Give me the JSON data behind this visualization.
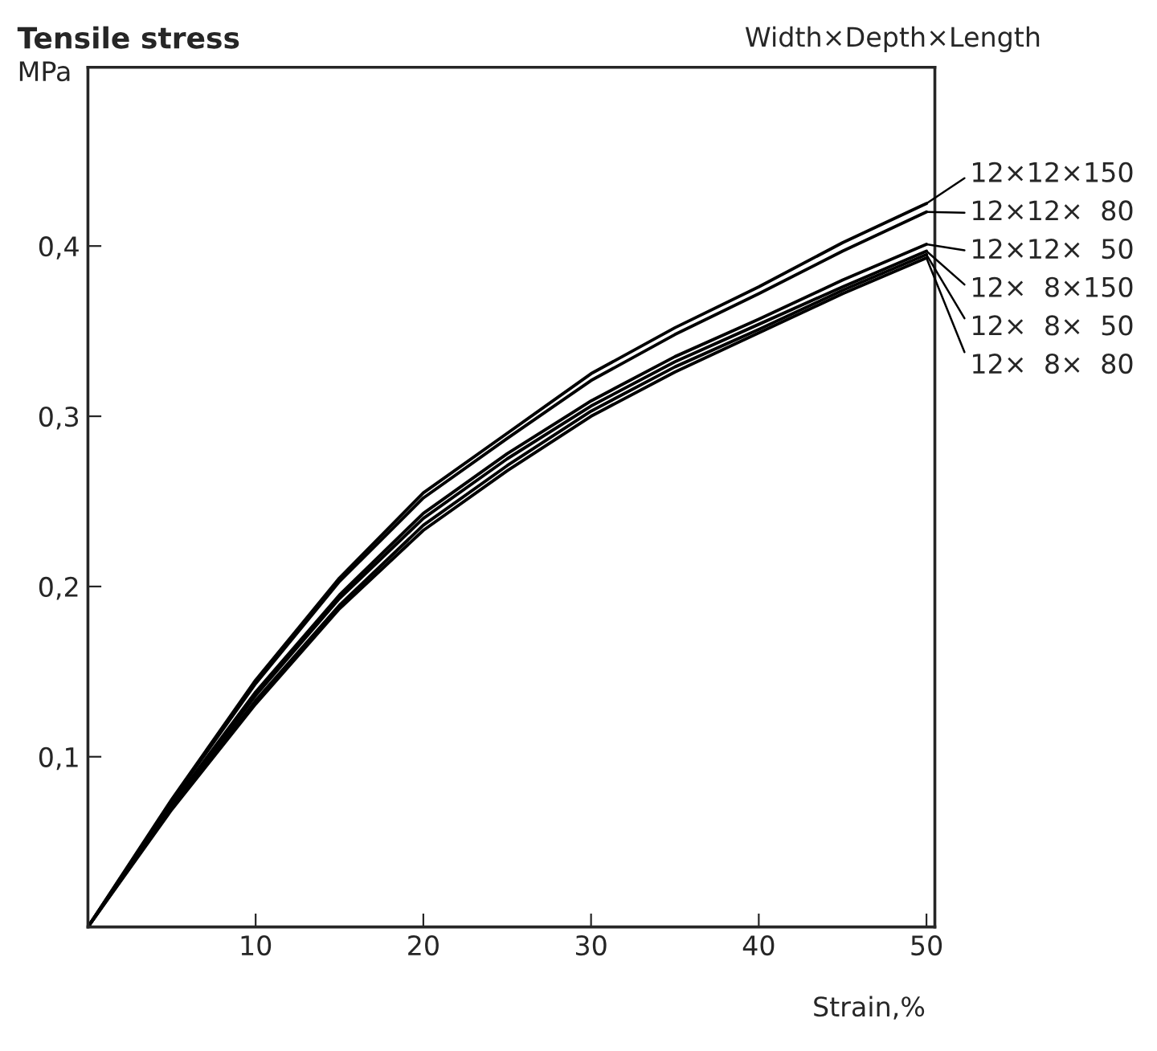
{
  "chart_data": {
    "type": "line",
    "title": "Tensile stress",
    "xlabel": "Strain,%",
    "ylabel": "MPa",
    "legend_title": "Width×Depth×Length",
    "x": [
      0,
      5,
      10,
      15,
      20,
      25,
      30,
      35,
      40,
      45,
      50
    ],
    "series": [
      {
        "name": "12×12×150",
        "color": "#000000",
        "values": [
          0,
          0.075,
          0.145,
          0.205,
          0.255,
          0.29,
          0.325,
          0.352,
          0.376,
          0.402,
          0.425
        ]
      },
      {
        "name": "12×12×  80",
        "color": "#000000",
        "values": [
          0,
          0.074,
          0.143,
          0.203,
          0.252,
          0.287,
          0.321,
          0.348,
          0.372,
          0.397,
          0.42
        ]
      },
      {
        "name": "12×12×  50",
        "color": "#000000",
        "values": [
          0,
          0.072,
          0.138,
          0.195,
          0.243,
          0.278,
          0.309,
          0.335,
          0.357,
          0.38,
          0.401
        ]
      },
      {
        "name": "12×  8×150",
        "color": "#000000",
        "values": [
          0,
          0.071,
          0.136,
          0.193,
          0.24,
          0.275,
          0.306,
          0.332,
          0.354,
          0.376,
          0.397
        ]
      },
      {
        "name": "12×  8×  50",
        "color": "#000000",
        "values": [
          0,
          0.07,
          0.133,
          0.189,
          0.236,
          0.271,
          0.303,
          0.329,
          0.351,
          0.374,
          0.395
        ]
      },
      {
        "name": "12×  8×  80",
        "color": "#000000",
        "values": [
          0,
          0.069,
          0.131,
          0.187,
          0.233,
          0.268,
          0.3,
          0.326,
          0.349,
          0.372,
          0.393
        ]
      }
    ],
    "xlim": [
      0,
      50.5
    ],
    "xticks": [
      10,
      20,
      30,
      40,
      50
    ],
    "ylim": [
      0,
      0.505
    ],
    "yticks": [
      {
        "value": 0.1,
        "label": "0,1"
      },
      {
        "value": 0.2,
        "label": "0,2"
      },
      {
        "value": 0.3,
        "label": "0,3"
      },
      {
        "value": 0.4,
        "label": "0,4"
      }
    ],
    "grid": false,
    "legend": "right",
    "marker": "none",
    "line_style": "solid"
  }
}
